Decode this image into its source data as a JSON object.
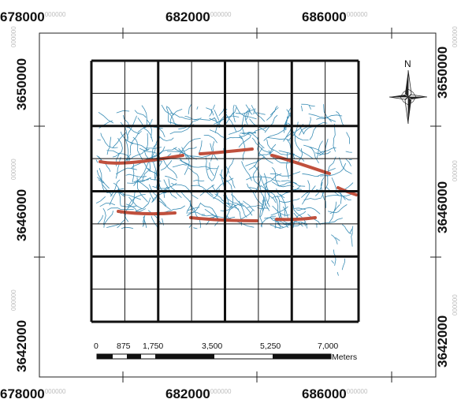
{
  "top_x_labels": [
    {
      "main": "678000",
      "sub": "000000"
    },
    {
      "main": "682000",
      "sub": "000000"
    },
    {
      "main": "686000",
      "sub": "000000"
    }
  ],
  "bottom_x_labels": [
    {
      "main": "678000",
      "sub": "000000"
    },
    {
      "main": "682000",
      "sub": "000000"
    },
    {
      "main": "686000",
      "sub": "000000"
    }
  ],
  "left_y_labels": [
    {
      "main": "3650000",
      "sub": "000000"
    },
    {
      "main": "3646000",
      "sub": "000000"
    },
    {
      "main": "3642000",
      "sub": "000000"
    }
  ],
  "right_y_labels": [
    {
      "main": "3650000",
      "sub": "000000"
    },
    {
      "main": "3646000",
      "sub": "000000"
    },
    {
      "main": "3642000",
      "sub": "000000"
    }
  ],
  "north_arrow": {
    "label": "N",
    "icon": "north-arrow-icon"
  },
  "scale_bar": {
    "ticks": [
      "0",
      "875",
      "1,750",
      "3,500",
      "5,250",
      "7,000"
    ],
    "unit": "Meters"
  },
  "colors": {
    "drainage": "#3a8db5",
    "faults": "#c0503d",
    "grid": "#111111",
    "frame": "#222222"
  }
}
